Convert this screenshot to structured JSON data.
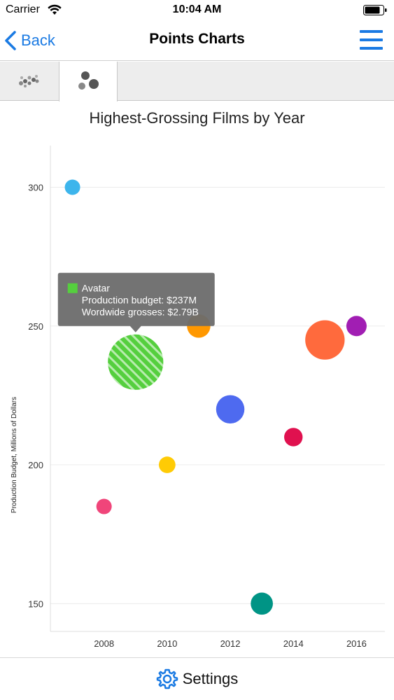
{
  "status": {
    "carrier": "Carrier",
    "time": "10:04 AM"
  },
  "nav": {
    "back_label": "Back",
    "title": "Points Charts"
  },
  "tabs": [
    {
      "icon": "scatter-points-icon",
      "selected": false
    },
    {
      "icon": "bubble-points-icon",
      "selected": true
    }
  ],
  "chart_data": {
    "type": "scatter",
    "title": "Highest-Grossing Films by Year",
    "xlabel": "",
    "ylabel": "Production Budget, Millions of Dollars",
    "xlim": [
      2006.3,
      2016.9
    ],
    "ylim": [
      140,
      315
    ],
    "xticks": [
      2008,
      2010,
      2012,
      2014,
      2016
    ],
    "yticks": [
      150,
      200,
      250,
      300
    ],
    "grid": "horizontal",
    "points": [
      {
        "x": 2007,
        "y": 300,
        "size": 0.25,
        "color": "#3db5ec"
      },
      {
        "x": 2008,
        "y": 185,
        "size": 0.25,
        "color": "#f0457a"
      },
      {
        "x": 2009,
        "y": 237,
        "size": 0.9,
        "color": "#55cf3e",
        "selected": true
      },
      {
        "x": 2010,
        "y": 200,
        "size": 0.27,
        "color": "#ffcb05"
      },
      {
        "x": 2011,
        "y": 250,
        "size": 0.38,
        "color": "#ff9800"
      },
      {
        "x": 2012,
        "y": 220,
        "size": 0.46,
        "color": "#4e6af0"
      },
      {
        "x": 2013,
        "y": 150,
        "size": 0.36,
        "color": "#009485"
      },
      {
        "x": 2014,
        "y": 210,
        "size": 0.3,
        "color": "#e0114f"
      },
      {
        "x": 2015,
        "y": 245,
        "size": 0.64,
        "color": "#ff6a3d"
      },
      {
        "x": 2016,
        "y": 250,
        "size": 0.33,
        "color": "#a11eb3"
      }
    ],
    "tooltip": {
      "title": "Avatar",
      "line1": "Production budget: $237M",
      "line2": "Wordwide grosses: $2.79B",
      "color": "#55cf3e"
    }
  },
  "bottom": {
    "settings_label": "Settings"
  }
}
